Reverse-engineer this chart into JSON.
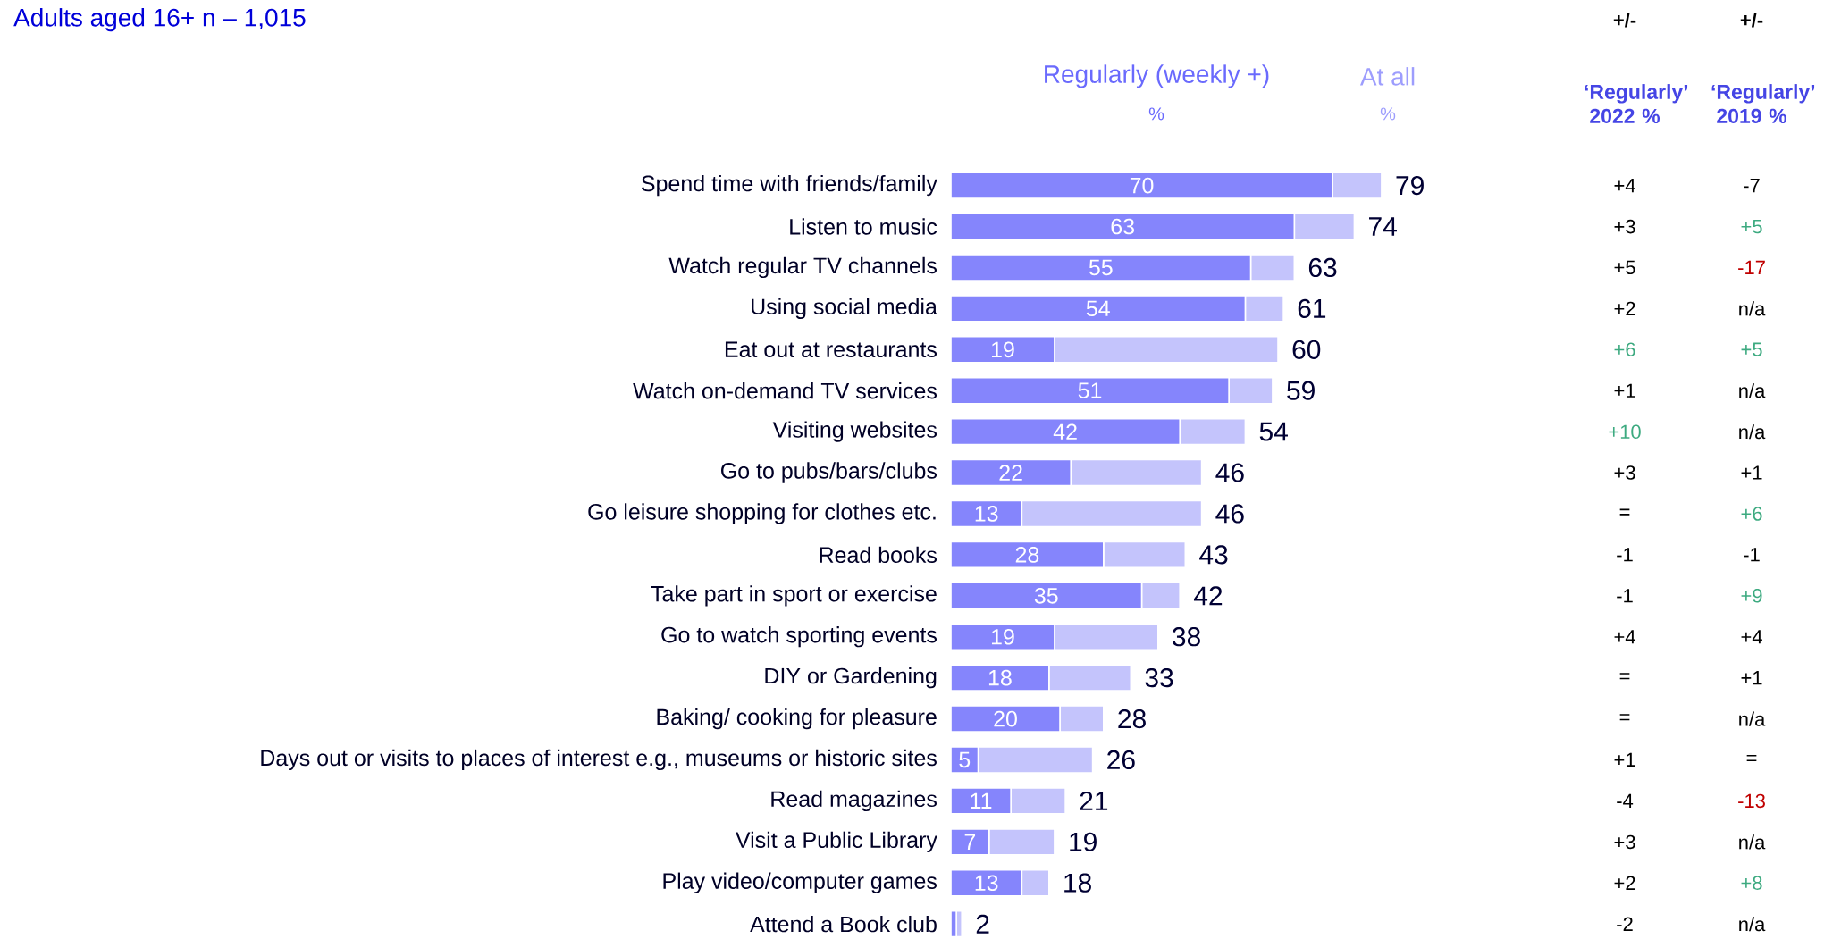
{
  "chart_data": [
    {
      "type": "bar",
      "orientation": "horizontal",
      "stacked": true,
      "subtitle": "Adults aged 16+ n – 1,015",
      "categories": [
        "Spend time with friends/family",
        "Listen to music",
        "Watch regular TV channels",
        "Using social media",
        "Eat out at restaurants",
        "Watch on-demand TV services",
        "Visiting websites",
        "Go to pubs/bars/clubs",
        "Go leisure shopping for clothes etc.",
        "Read books",
        "Take part in sport or exercise",
        "Go to watch sporting events",
        "DIY or Gardening",
        "Baking/ cooking for pleasure",
        "Days out or visits to places of interest e.g., museums or historic sites",
        "Read magazines",
        "Visit a Public Library",
        "Play video/computer games",
        "Attend a Book club"
      ],
      "series": [
        {
          "name": "Regularly (weekly +)",
          "color": "#8585fc",
          "values": [
            70,
            63,
            55,
            54,
            19,
            51,
            42,
            22,
            13,
            28,
            35,
            19,
            18,
            20,
            5,
            11,
            7,
            13,
            1
          ],
          "value_labels": [
            "70",
            "63",
            "55",
            "54",
            "19",
            "51",
            "42",
            "22",
            "13",
            "28",
            "35",
            "19",
            "18",
            "20",
            "5",
            "11",
            "7",
            "13",
            null
          ]
        },
        {
          "name": "At all",
          "color": "#c4c4fc",
          "values": [
            9,
            11,
            8,
            7,
            41,
            8,
            12,
            24,
            33,
            15,
            7,
            19,
            15,
            8,
            21,
            10,
            12,
            5,
            1
          ]
        }
      ],
      "totals": [
        "79",
        "74",
        "63",
        "61",
        "60",
        "59",
        "54",
        "46",
        "46",
        "43",
        "42",
        "38",
        "33",
        "28",
        "26",
        "21",
        "19",
        "18",
        "2"
      ],
      "annotations": [
        "%",
        "%"
      ],
      "legend": false
    },
    {
      "type": "other",
      "title": "+/-",
      "subtitle": "‘Regularly’ 2022 %",
      "annotations": [
        "+4",
        "+3",
        "+5",
        "+2",
        "+6",
        "+1",
        "+10",
        "+3",
        "=",
        "-1",
        "-1",
        "+4",
        "=",
        "=",
        "+1",
        "-4",
        "+3",
        "+2",
        "-2"
      ],
      "colors": [
        "#000000",
        "#000000",
        "#000000",
        "#000000",
        "#3daa80",
        "#000000",
        "#3daa80",
        "#000000",
        "#000000",
        "#000000",
        "#000000",
        "#000000",
        "#000000",
        "#000000",
        "#000000",
        "#000000",
        "#000000",
        "#000000",
        "#000000"
      ]
    },
    {
      "type": "other",
      "title": "+/-",
      "subtitle": "‘Regularly’ 2019 %",
      "annotations": [
        "-7",
        "+5",
        "-17",
        "n/a",
        "+5",
        "n/a",
        "n/a",
        "+1",
        "+6",
        "-1",
        "+9",
        "+4",
        "+1",
        "n/a",
        "=",
        "-13",
        "n/a",
        "+8",
        "n/a"
      ],
      "colors": [
        "#000000",
        "#3daa80",
        "#c00000",
        "#000000",
        "#3daa80",
        "#000000",
        "#000000",
        "#000000",
        "#3daa80",
        "#000000",
        "#3daa80",
        "#000000",
        "#000000",
        "#000000",
        "#000000",
        "#c00000",
        "#000000",
        "#3daa80",
        "#000000"
      ]
    }
  ]
}
